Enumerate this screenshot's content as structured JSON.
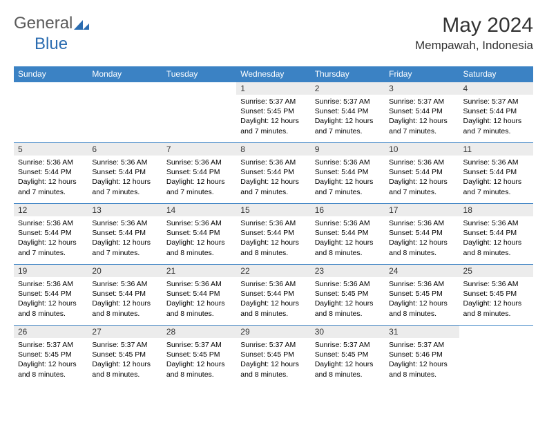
{
  "logo": {
    "general": "General",
    "blue": "Blue"
  },
  "title": "May 2024",
  "location": "Mempawah, Indonesia",
  "colors": {
    "header_bg": "#3b82c4",
    "header_text": "#ffffff",
    "daynum_bg": "#ececec",
    "row_border": "#3b82c4",
    "logo_blue": "#2b6cb0",
    "logo_gray": "#5a5a5a"
  },
  "weekdays": [
    "Sunday",
    "Monday",
    "Tuesday",
    "Wednesday",
    "Thursday",
    "Friday",
    "Saturday"
  ],
  "weeks": [
    [
      null,
      null,
      null,
      {
        "n": "1",
        "sr": "5:37 AM",
        "ss": "5:45 PM",
        "dl": "12 hours and 7 minutes."
      },
      {
        "n": "2",
        "sr": "5:37 AM",
        "ss": "5:44 PM",
        "dl": "12 hours and 7 minutes."
      },
      {
        "n": "3",
        "sr": "5:37 AM",
        "ss": "5:44 PM",
        "dl": "12 hours and 7 minutes."
      },
      {
        "n": "4",
        "sr": "5:37 AM",
        "ss": "5:44 PM",
        "dl": "12 hours and 7 minutes."
      }
    ],
    [
      {
        "n": "5",
        "sr": "5:36 AM",
        "ss": "5:44 PM",
        "dl": "12 hours and 7 minutes."
      },
      {
        "n": "6",
        "sr": "5:36 AM",
        "ss": "5:44 PM",
        "dl": "12 hours and 7 minutes."
      },
      {
        "n": "7",
        "sr": "5:36 AM",
        "ss": "5:44 PM",
        "dl": "12 hours and 7 minutes."
      },
      {
        "n": "8",
        "sr": "5:36 AM",
        "ss": "5:44 PM",
        "dl": "12 hours and 7 minutes."
      },
      {
        "n": "9",
        "sr": "5:36 AM",
        "ss": "5:44 PM",
        "dl": "12 hours and 7 minutes."
      },
      {
        "n": "10",
        "sr": "5:36 AM",
        "ss": "5:44 PM",
        "dl": "12 hours and 7 minutes."
      },
      {
        "n": "11",
        "sr": "5:36 AM",
        "ss": "5:44 PM",
        "dl": "12 hours and 7 minutes."
      }
    ],
    [
      {
        "n": "12",
        "sr": "5:36 AM",
        "ss": "5:44 PM",
        "dl": "12 hours and 7 minutes."
      },
      {
        "n": "13",
        "sr": "5:36 AM",
        "ss": "5:44 PM",
        "dl": "12 hours and 7 minutes."
      },
      {
        "n": "14",
        "sr": "5:36 AM",
        "ss": "5:44 PM",
        "dl": "12 hours and 8 minutes."
      },
      {
        "n": "15",
        "sr": "5:36 AM",
        "ss": "5:44 PM",
        "dl": "12 hours and 8 minutes."
      },
      {
        "n": "16",
        "sr": "5:36 AM",
        "ss": "5:44 PM",
        "dl": "12 hours and 8 minutes."
      },
      {
        "n": "17",
        "sr": "5:36 AM",
        "ss": "5:44 PM",
        "dl": "12 hours and 8 minutes."
      },
      {
        "n": "18",
        "sr": "5:36 AM",
        "ss": "5:44 PM",
        "dl": "12 hours and 8 minutes."
      }
    ],
    [
      {
        "n": "19",
        "sr": "5:36 AM",
        "ss": "5:44 PM",
        "dl": "12 hours and 8 minutes."
      },
      {
        "n": "20",
        "sr": "5:36 AM",
        "ss": "5:44 PM",
        "dl": "12 hours and 8 minutes."
      },
      {
        "n": "21",
        "sr": "5:36 AM",
        "ss": "5:44 PM",
        "dl": "12 hours and 8 minutes."
      },
      {
        "n": "22",
        "sr": "5:36 AM",
        "ss": "5:44 PM",
        "dl": "12 hours and 8 minutes."
      },
      {
        "n": "23",
        "sr": "5:36 AM",
        "ss": "5:45 PM",
        "dl": "12 hours and 8 minutes."
      },
      {
        "n": "24",
        "sr": "5:36 AM",
        "ss": "5:45 PM",
        "dl": "12 hours and 8 minutes."
      },
      {
        "n": "25",
        "sr": "5:36 AM",
        "ss": "5:45 PM",
        "dl": "12 hours and 8 minutes."
      }
    ],
    [
      {
        "n": "26",
        "sr": "5:37 AM",
        "ss": "5:45 PM",
        "dl": "12 hours and 8 minutes."
      },
      {
        "n": "27",
        "sr": "5:37 AM",
        "ss": "5:45 PM",
        "dl": "12 hours and 8 minutes."
      },
      {
        "n": "28",
        "sr": "5:37 AM",
        "ss": "5:45 PM",
        "dl": "12 hours and 8 minutes."
      },
      {
        "n": "29",
        "sr": "5:37 AM",
        "ss": "5:45 PM",
        "dl": "12 hours and 8 minutes."
      },
      {
        "n": "30",
        "sr": "5:37 AM",
        "ss": "5:45 PM",
        "dl": "12 hours and 8 minutes."
      },
      {
        "n": "31",
        "sr": "5:37 AM",
        "ss": "5:46 PM",
        "dl": "12 hours and 8 minutes."
      },
      null
    ]
  ],
  "labels": {
    "sunrise": "Sunrise:",
    "sunset": "Sunset:",
    "daylight": "Daylight:"
  }
}
